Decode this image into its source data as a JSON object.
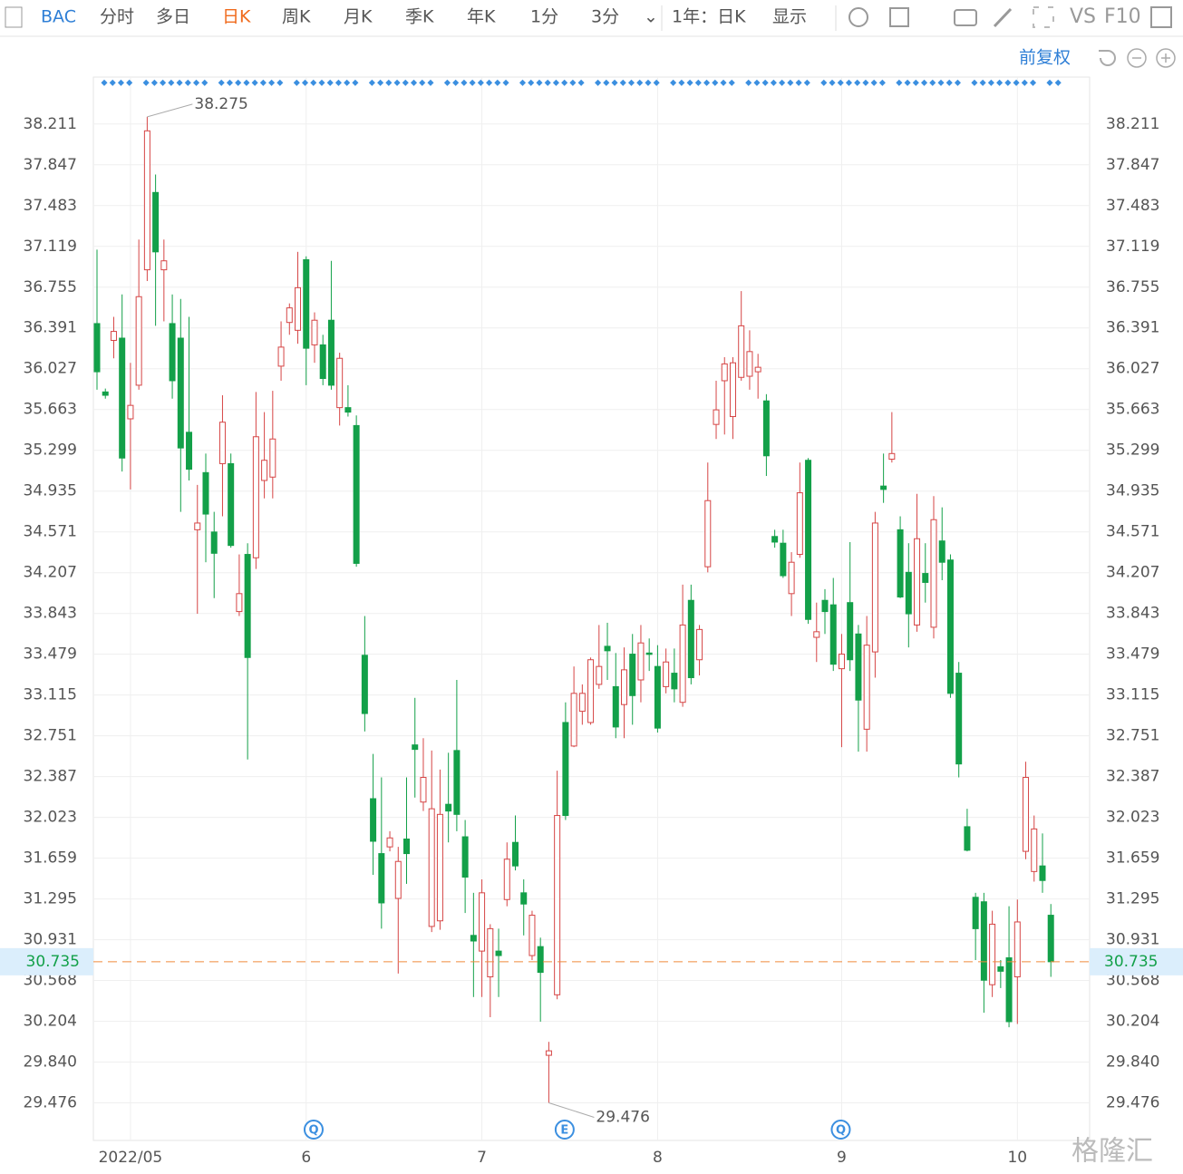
{
  "toolbar": {
    "symbol": "BAC",
    "tabs": [
      "分时",
      "多日",
      "日K",
      "周K",
      "月K",
      "季K",
      "年K",
      "1分",
      "3分"
    ],
    "range": "1年：日K",
    "display": "显示",
    "vs": "VS",
    "f10": "F10",
    "adjust": "前复权"
  },
  "watermark": "格隆汇",
  "chart_data": {
    "type": "candlestick",
    "categories": [
      null,
      null,
      null,
      null,
      "2022/05",
      null,
      null,
      null,
      null,
      null,
      null,
      null,
      null,
      null,
      null,
      null,
      null,
      null,
      null,
      null,
      null,
      null,
      null,
      null,
      null,
      "6",
      null,
      null,
      null,
      null,
      null,
      null,
      null,
      null,
      null,
      null,
      null,
      null,
      null,
      null,
      null,
      null,
      null,
      null,
      null,
      null,
      "7",
      null,
      null,
      null,
      null,
      null,
      null,
      null,
      null,
      null,
      null,
      null,
      null,
      null,
      null,
      null,
      null,
      null,
      null,
      null,
      null,
      "8",
      null,
      null,
      null,
      null,
      null,
      null,
      null,
      null,
      null,
      null,
      null,
      null,
      null,
      null,
      null,
      null,
      null,
      null,
      null,
      null,
      null,
      "9",
      null,
      null,
      null,
      null,
      null,
      null,
      null,
      null,
      null,
      null,
      null,
      null,
      null,
      null,
      null,
      null,
      null,
      null,
      null,
      null,
      "10",
      null,
      null,
      null,
      null
    ],
    "events": [
      null,
      null,
      null,
      null,
      null,
      null,
      null,
      null,
      null,
      null,
      null,
      null,
      null,
      null,
      null,
      null,
      null,
      null,
      null,
      null,
      null,
      null,
      null,
      null,
      null,
      null,
      "Q",
      null,
      null,
      null,
      null,
      null,
      null,
      null,
      null,
      null,
      null,
      null,
      null,
      null,
      null,
      null,
      null,
      null,
      null,
      null,
      null,
      null,
      null,
      null,
      null,
      null,
      null,
      null,
      null,
      null,
      "E",
      null,
      null,
      null,
      null,
      null,
      null,
      null,
      null,
      null,
      null,
      null,
      null,
      null,
      null,
      null,
      null,
      null,
      null,
      null,
      null,
      null,
      null,
      null,
      null,
      null,
      null,
      null,
      null,
      null,
      null,
      null,
      null,
      "Q",
      null,
      null,
      null,
      null,
      null,
      null,
      null,
      null,
      null,
      null,
      null,
      null,
      null,
      null,
      null,
      null,
      null,
      null,
      null,
      null,
      null,
      null,
      null,
      null,
      null
    ],
    "ohlc": [
      [
        36.43,
        37.09,
        35.84,
        36.0
      ],
      [
        35.82,
        35.85,
        35.76,
        35.79
      ],
      [
        36.28,
        36.49,
        36.12,
        36.36
      ],
      [
        36.3,
        36.69,
        35.11,
        35.23
      ],
      [
        35.58,
        36.08,
        34.95,
        35.7
      ],
      [
        35.88,
        37.18,
        35.84,
        36.67
      ],
      [
        36.91,
        38.275,
        36.81,
        38.15
      ],
      [
        37.6,
        37.76,
        36.41,
        37.07
      ],
      [
        36.91,
        37.18,
        36.45,
        36.99
      ],
      [
        36.43,
        36.69,
        35.76,
        35.92
      ],
      [
        36.3,
        36.65,
        34.75,
        35.32
      ],
      [
        35.46,
        36.49,
        35.03,
        35.13
      ],
      [
        34.59,
        34.99,
        33.84,
        34.65
      ],
      [
        35.1,
        35.27,
        34.3,
        34.73
      ],
      [
        34.57,
        34.75,
        33.98,
        34.38
      ],
      [
        35.18,
        35.79,
        34.71,
        35.55
      ],
      [
        35.18,
        35.27,
        34.43,
        34.45
      ],
      [
        33.86,
        34.37,
        33.82,
        34.02
      ],
      [
        34.37,
        34.47,
        32.54,
        33.45
      ],
      [
        34.34,
        35.82,
        34.24,
        35.42
      ],
      [
        35.03,
        35.64,
        34.87,
        35.21
      ],
      [
        35.06,
        35.83,
        34.87,
        35.4
      ],
      [
        36.05,
        36.45,
        35.92,
        36.22
      ],
      [
        36.44,
        36.61,
        36.33,
        36.57
      ],
      [
        36.37,
        37.07,
        36.25,
        36.75
      ],
      [
        37.0,
        37.03,
        35.88,
        36.21
      ],
      [
        36.24,
        36.53,
        36.08,
        36.46
      ],
      [
        36.24,
        36.33,
        35.88,
        35.94
      ],
      [
        36.46,
        36.99,
        35.84,
        35.88
      ],
      [
        35.68,
        36.17,
        35.52,
        36.12
      ],
      [
        35.68,
        35.88,
        35.6,
        35.64
      ],
      [
        35.52,
        35.61,
        34.26,
        34.29
      ],
      [
        33.47,
        33.82,
        32.79,
        32.95
      ],
      [
        32.19,
        32.59,
        31.51,
        31.81
      ],
      [
        31.7,
        32.38,
        31.03,
        31.26
      ],
      [
        31.76,
        31.9,
        31.72,
        31.84
      ],
      [
        31.3,
        31.76,
        30.63,
        31.63
      ],
      [
        31.83,
        32.38,
        31.43,
        31.7
      ],
      [
        32.67,
        33.09,
        32.2,
        32.63
      ],
      [
        32.16,
        32.73,
        32.08,
        32.38
      ],
      [
        31.05,
        32.62,
        31.0,
        32.1
      ],
      [
        31.1,
        32.45,
        31.02,
        32.05
      ],
      [
        32.14,
        32.6,
        31.8,
        32.08
      ],
      [
        32.62,
        33.25,
        31.9,
        32.05
      ],
      [
        31.85,
        32.0,
        31.17,
        31.49
      ],
      [
        30.97,
        31.35,
        30.42,
        30.92
      ],
      [
        30.83,
        31.47,
        30.42,
        31.35
      ],
      [
        30.6,
        31.07,
        30.24,
        31.03
      ],
      [
        30.83,
        31.03,
        30.42,
        30.79
      ],
      [
        31.29,
        31.8,
        31.23,
        31.65
      ],
      [
        31.8,
        32.04,
        31.55,
        31.59
      ],
      [
        31.35,
        31.47,
        30.97,
        31.25
      ],
      [
        30.79,
        31.19,
        30.75,
        31.15
      ],
      [
        30.87,
        30.95,
        30.2,
        30.64
      ],
      [
        29.9,
        30.02,
        29.476,
        29.94
      ],
      [
        30.44,
        32.44,
        30.4,
        32.04
      ],
      [
        32.87,
        33.05,
        32.0,
        32.04
      ],
      [
        32.66,
        33.37,
        32.65,
        33.13
      ],
      [
        32.97,
        33.21,
        32.85,
        33.13
      ],
      [
        32.87,
        33.45,
        32.85,
        33.43
      ],
      [
        33.21,
        33.74,
        33.17,
        33.37
      ],
      [
        33.55,
        33.76,
        33.25,
        33.51
      ],
      [
        33.19,
        33.49,
        32.73,
        32.83
      ],
      [
        33.03,
        33.54,
        32.73,
        33.34
      ],
      [
        33.48,
        33.66,
        32.85,
        33.11
      ],
      [
        33.25,
        33.74,
        33.05,
        33.58
      ],
      [
        33.49,
        33.62,
        33.33,
        33.48
      ],
      [
        33.37,
        33.56,
        32.78,
        32.82
      ],
      [
        33.19,
        33.53,
        33.13,
        33.41
      ],
      [
        33.31,
        33.53,
        33.05,
        33.17
      ],
      [
        33.05,
        34.1,
        33.01,
        33.74
      ],
      [
        33.96,
        34.1,
        33.21,
        33.27
      ],
      [
        33.43,
        33.74,
        33.29,
        33.7
      ],
      [
        34.26,
        35.19,
        34.21,
        34.85
      ],
      [
        35.53,
        35.92,
        35.4,
        35.66
      ],
      [
        35.92,
        36.13,
        35.44,
        36.07
      ],
      [
        35.6,
        36.13,
        35.4,
        36.08
      ],
      [
        35.95,
        36.72,
        35.92,
        36.41
      ],
      [
        35.96,
        36.37,
        35.84,
        36.18
      ],
      [
        36.0,
        36.16,
        35.76,
        36.04
      ],
      [
        35.74,
        35.8,
        35.07,
        35.25
      ],
      [
        34.53,
        34.59,
        34.43,
        34.48
      ],
      [
        34.47,
        34.59,
        34.16,
        34.18
      ],
      [
        34.02,
        34.39,
        33.82,
        34.3
      ],
      [
        34.37,
        35.19,
        34.34,
        34.92
      ],
      [
        35.21,
        35.23,
        33.75,
        33.79
      ],
      [
        33.63,
        33.94,
        33.41,
        33.68
      ],
      [
        33.96,
        34.06,
        33.66,
        33.86
      ],
      [
        33.92,
        34.16,
        33.33,
        33.39
      ],
      [
        33.35,
        33.66,
        32.65,
        33.48
      ],
      [
        33.94,
        34.48,
        33.33,
        33.43
      ],
      [
        33.66,
        33.74,
        32.61,
        33.07
      ],
      [
        32.81,
        33.82,
        32.61,
        33.56
      ],
      [
        33.5,
        34.75,
        33.27,
        34.65
      ],
      [
        34.98,
        35.27,
        34.83,
        34.95
      ],
      [
        35.22,
        35.64,
        35.19,
        35.27
      ],
      [
        34.59,
        34.71,
        33.98,
        33.99
      ],
      [
        34.21,
        34.47,
        33.54,
        33.84
      ],
      [
        33.74,
        34.91,
        33.68,
        34.51
      ],
      [
        34.2,
        34.47,
        33.94,
        34.12
      ],
      [
        33.72,
        34.89,
        33.62,
        34.68
      ],
      [
        34.49,
        34.79,
        34.14,
        34.3
      ],
      [
        34.32,
        34.37,
        33.09,
        33.13
      ],
      [
        33.31,
        33.41,
        32.38,
        32.5
      ],
      [
        31.94,
        32.1,
        31.72,
        31.73
      ],
      [
        31.31,
        31.35,
        30.75,
        31.03
      ],
      [
        31.27,
        31.35,
        30.28,
        30.57
      ],
      [
        30.53,
        31.19,
        30.42,
        31.07
      ],
      [
        30.69,
        30.75,
        30.5,
        30.65
      ],
      [
        30.77,
        31.23,
        30.15,
        30.2
      ],
      [
        30.6,
        31.29,
        30.18,
        31.09
      ],
      [
        31.72,
        32.52,
        31.65,
        32.38
      ],
      [
        31.54,
        32.04,
        31.45,
        31.92
      ],
      [
        31.59,
        31.88,
        31.35,
        31.46
      ],
      [
        31.15,
        31.25,
        30.6,
        30.735
      ]
    ],
    "up_color": "#d64545",
    "down_color": "#13a049",
    "ylim": [
      29.14,
      38.63
    ],
    "yticks": [
      {
        "value": 29.84,
        "label": "29.840"
      },
      29.476,
      30.204,
      30.568,
      30.931,
      31.295,
      31.659,
      32.023,
      32.387,
      32.751,
      33.115,
      33.479,
      33.843,
      34.207,
      34.571,
      34.935,
      35.299,
      35.663,
      36.027,
      36.391,
      36.755,
      37.119,
      37.483,
      37.847,
      38.211
    ],
    "grid": true
  }
}
